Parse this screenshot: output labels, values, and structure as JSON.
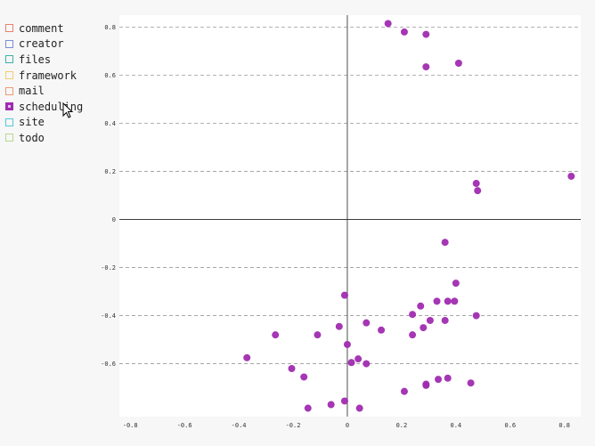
{
  "legend": {
    "items": [
      {
        "label": "comment",
        "color": "#e8826d",
        "active": false
      },
      {
        "label": "creator",
        "color": "#7a8ed6",
        "active": false
      },
      {
        "label": "files",
        "color": "#3bb2a6",
        "active": false
      },
      {
        "label": "framework",
        "color": "#f3cd73",
        "active": false
      },
      {
        "label": "mail",
        "color": "#ee9a72",
        "active": false
      },
      {
        "label": "scheduling",
        "color": "#a02bb0",
        "active": true
      },
      {
        "label": "site",
        "color": "#4ecad9",
        "active": false
      },
      {
        "label": "todo",
        "color": "#b5d98a",
        "active": false
      }
    ]
  },
  "chart_data": {
    "type": "scatter",
    "x_ticks": [
      "-0.8",
      "-0.6",
      "-0.4",
      "-0.2",
      "0",
      "0.2",
      "0.4",
      "0.6",
      "0.8"
    ],
    "y_ticks": [
      "0.8",
      "0.6",
      "0.4",
      "0.2",
      "0",
      "-0.2",
      "-0.4",
      "-0.6"
    ],
    "xlim": [
      -0.84,
      0.86
    ],
    "ylim": [
      -0.82,
      0.85
    ],
    "grid": "horizontal-dashed",
    "series": [
      {
        "color": "#a02bb0",
        "points": [
          [
            0.15,
            0.815
          ],
          [
            0.21,
            0.78
          ],
          [
            0.29,
            0.77
          ],
          [
            0.29,
            0.635
          ],
          [
            0.41,
            0.65
          ],
          [
            0.475,
            0.15
          ],
          [
            0.48,
            0.12
          ],
          [
            0.825,
            0.18
          ],
          [
            0.36,
            -0.095
          ],
          [
            0.4,
            -0.265
          ],
          [
            -0.01,
            -0.315
          ],
          [
            0.33,
            -0.34
          ],
          [
            0.37,
            -0.34
          ],
          [
            0.395,
            -0.34
          ],
          [
            0.27,
            -0.36
          ],
          [
            0.24,
            -0.395
          ],
          [
            0.475,
            -0.4
          ],
          [
            0.36,
            -0.42
          ],
          [
            0.305,
            -0.42
          ],
          [
            0.07,
            -0.43
          ],
          [
            -0.03,
            -0.445
          ],
          [
            0.28,
            -0.45
          ],
          [
            0.125,
            -0.46
          ],
          [
            0.24,
            -0.48
          ],
          [
            -0.265,
            -0.48
          ],
          [
            -0.11,
            -0.48
          ],
          [
            0.0,
            -0.52
          ],
          [
            -0.37,
            -0.575
          ],
          [
            0.04,
            -0.58
          ],
          [
            0.015,
            -0.595
          ],
          [
            0.07,
            -0.6
          ],
          [
            -0.205,
            -0.62
          ],
          [
            -0.16,
            -0.655
          ],
          [
            0.37,
            -0.66
          ],
          [
            0.335,
            -0.665
          ],
          [
            0.455,
            -0.68
          ],
          [
            0.29,
            -0.685
          ],
          [
            0.29,
            -0.69
          ],
          [
            0.21,
            -0.715
          ],
          [
            -0.01,
            -0.755
          ],
          [
            -0.06,
            -0.77
          ],
          [
            -0.145,
            -0.785
          ],
          [
            0.045,
            -0.785
          ]
        ]
      }
    ]
  }
}
